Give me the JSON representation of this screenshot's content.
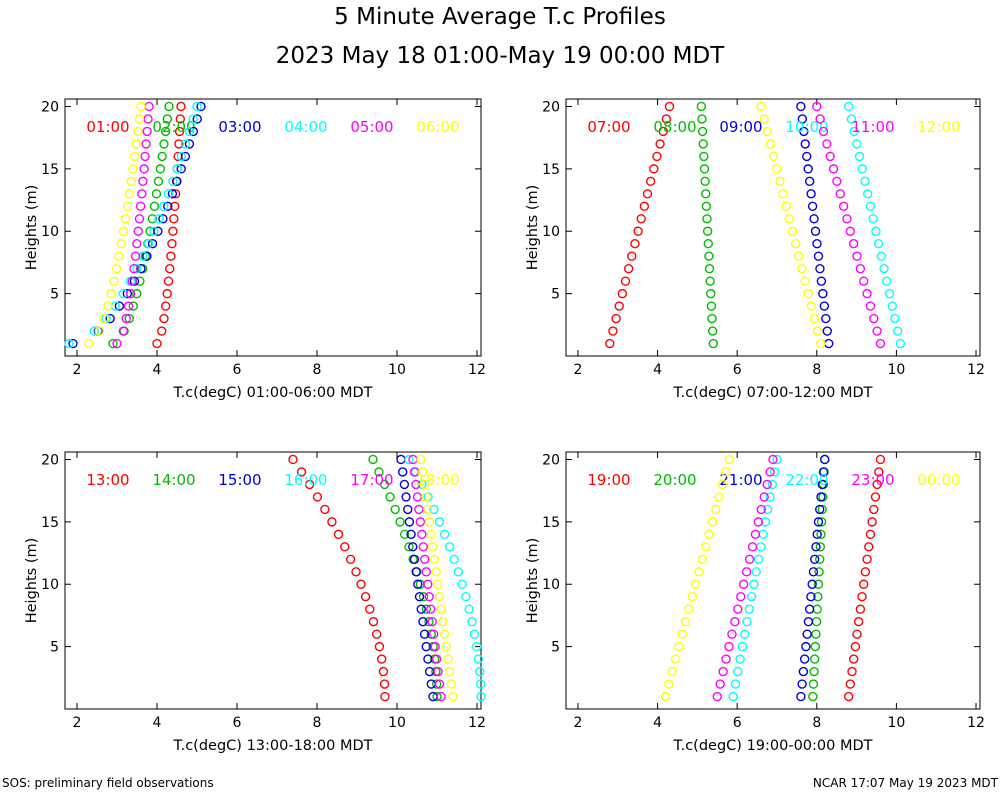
{
  "title": "5 Minute Average T.c Profiles",
  "subtitle": "2023 May 18 01:00-May 19 00:00 MDT",
  "footer": {
    "left": "SOS: preliminary field observations",
    "right": "NCAR 17:07 May 19 2023 MDT"
  },
  "colors": [
    "#ff0000",
    "#00bb00",
    "#0000dd",
    "#00ffff",
    "#ff00ff",
    "#ffff00"
  ],
  "chart_data": [
    {
      "type": "scatter",
      "xlabel": "T.c(degC) 01:00-06:00 MDT",
      "ylabel": "Heights (m)",
      "xlim": [
        1.7,
        12.1
      ],
      "ylim": [
        0,
        20.6
      ],
      "xticks": [
        2,
        4,
        6,
        8,
        10,
        12
      ],
      "yticks": [
        5,
        10,
        15,
        20
      ],
      "series": [
        {
          "name": "01:00",
          "color": "#ff0000",
          "bottom": 4.0,
          "top": 4.6,
          "profile": "concave"
        },
        {
          "name": "02:00",
          "color": "#00bb00",
          "bottom": 2.9,
          "top": 4.3,
          "profile": "concave"
        },
        {
          "name": "03:00",
          "color": "#0000dd",
          "bottom": 1.9,
          "top": 5.1,
          "profile": "concave"
        },
        {
          "name": "04:00",
          "color": "#00ffff",
          "bottom": 1.8,
          "top": 5.0,
          "profile": "concave"
        },
        {
          "name": "05:00",
          "color": "#ff00ff",
          "bottom": 3.0,
          "top": 3.8,
          "profile": "concave"
        },
        {
          "name": "06:00",
          "color": "#ffff00",
          "bottom": 2.3,
          "top": 3.6,
          "profile": "concave"
        }
      ]
    },
    {
      "type": "scatter",
      "xlabel": "T.c(degC) 07:00-12:00 MDT",
      "ylabel": "Heights (m)",
      "xlim": [
        1.7,
        12.1
      ],
      "ylim": [
        0,
        20.6
      ],
      "xticks": [
        2,
        4,
        6,
        8,
        10,
        12
      ],
      "yticks": [
        5,
        10,
        15,
        20
      ],
      "series": [
        {
          "name": "07:00",
          "color": "#ff0000",
          "bottom": 2.8,
          "top": 4.3,
          "profile": "linear"
        },
        {
          "name": "08:00",
          "color": "#00bb00",
          "bottom": 5.4,
          "top": 5.1,
          "profile": "linear"
        },
        {
          "name": "09:00",
          "color": "#0000dd",
          "bottom": 8.3,
          "top": 7.6,
          "profile": "linear"
        },
        {
          "name": "10:00",
          "color": "#00ffff",
          "bottom": 10.1,
          "top": 8.8,
          "profile": "linear"
        },
        {
          "name": "11:00",
          "color": "#ff00ff",
          "bottom": 9.6,
          "top": 8.0,
          "profile": "linear"
        },
        {
          "name": "12:00",
          "color": "#ffff00",
          "bottom": 8.1,
          "top": 6.6,
          "profile": "linear"
        }
      ]
    },
    {
      "type": "scatter",
      "xlabel": "T.c(degC) 13:00-18:00 MDT",
      "ylabel": "Heights (m)",
      "xlim": [
        1.7,
        12.1
      ],
      "ylim": [
        0,
        20.6
      ],
      "xticks": [
        2,
        4,
        6,
        8,
        10,
        12
      ],
      "yticks": [
        5,
        10,
        15,
        20
      ],
      "series": [
        {
          "name": "13:00",
          "color": "#ff0000",
          "bottom": 9.7,
          "top": 7.4,
          "profile": "convex"
        },
        {
          "name": "14:00",
          "color": "#00bb00",
          "bottom": 11.0,
          "top": 9.4,
          "profile": "convex"
        },
        {
          "name": "15:00",
          "color": "#0000dd",
          "bottom": 10.9,
          "top": 10.1,
          "profile": "linear"
        },
        {
          "name": "16:00",
          "color": "#00ffff",
          "bottom": 12.1,
          "top": 10.3,
          "profile": "convex"
        },
        {
          "name": "17:00",
          "color": "#ff00ff",
          "bottom": 11.1,
          "top": 10.4,
          "profile": "linear"
        },
        {
          "name": "18:00",
          "color": "#ffff00",
          "bottom": 11.4,
          "top": 10.6,
          "profile": "linear"
        }
      ]
    },
    {
      "type": "scatter",
      "xlabel": "T.c(degC) 19:00-00:00 MDT",
      "ylabel": "Heights (m)",
      "xlim": [
        1.7,
        12.1
      ],
      "ylim": [
        0,
        20.6
      ],
      "xticks": [
        2,
        4,
        6,
        8,
        10,
        12
      ],
      "yticks": [
        5,
        10,
        15,
        20
      ],
      "series": [
        {
          "name": "19:00",
          "color": "#ff0000",
          "bottom": 8.8,
          "top": 9.6,
          "profile": "linear"
        },
        {
          "name": "20:00",
          "color": "#00bb00",
          "bottom": 7.9,
          "top": 8.2,
          "profile": "linear"
        },
        {
          "name": "21:00",
          "color": "#0000dd",
          "bottom": 7.6,
          "top": 8.2,
          "profile": "linear"
        },
        {
          "name": "22:00",
          "color": "#00ffff",
          "bottom": 5.9,
          "top": 7.0,
          "profile": "linear"
        },
        {
          "name": "23:00",
          "color": "#ff00ff",
          "bottom": 5.5,
          "top": 6.9,
          "profile": "linear"
        },
        {
          "name": "00:00",
          "color": "#ffff00",
          "bottom": 4.2,
          "top": 5.8,
          "profile": "linear"
        }
      ]
    }
  ]
}
